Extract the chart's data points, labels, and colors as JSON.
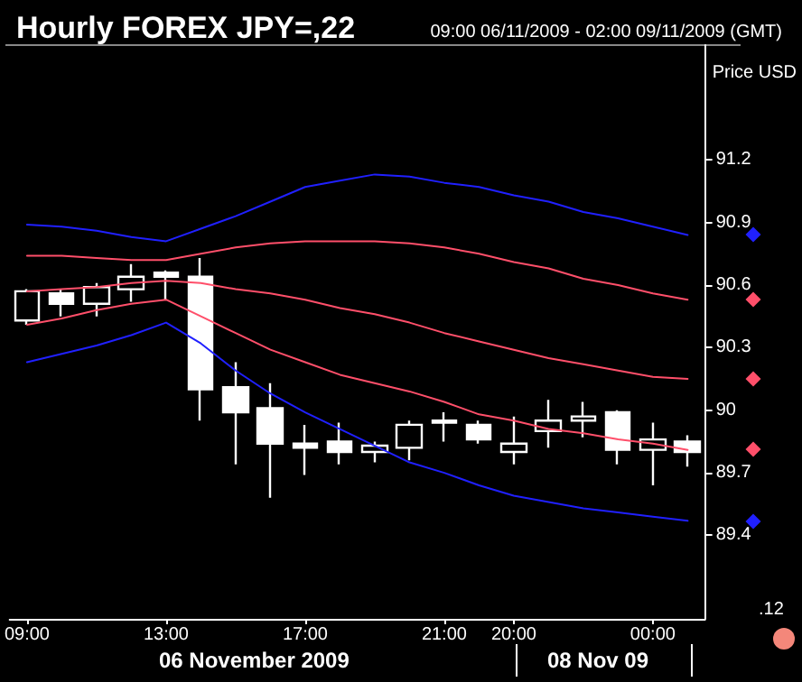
{
  "chart_data": {
    "type": "candlestick",
    "title": "Hourly FOREX JPY=,22",
    "subtitle": "09:00 06/11/2009 - 02:00 09/11/2009 (GMT)",
    "ylabel": "Price USD",
    "categories": [
      "09:00",
      null,
      null,
      null,
      "13:00",
      null,
      null,
      null,
      "17:00",
      null,
      null,
      null,
      "21:00",
      null,
      "20:00",
      null,
      null,
      null,
      "00:00",
      null
    ],
    "ohlc": [
      [
        90.43,
        90.58,
        90.41,
        90.57
      ],
      [
        90.56,
        90.58,
        90.45,
        90.51
      ],
      [
        90.51,
        90.61,
        90.45,
        90.59
      ],
      [
        90.58,
        90.7,
        90.52,
        90.64
      ],
      [
        90.66,
        90.67,
        90.53,
        90.64
      ],
      [
        90.64,
        90.73,
        89.95,
        90.1
      ],
      [
        90.11,
        90.23,
        89.74,
        89.99
      ],
      [
        90.01,
        90.13,
        89.58,
        89.84
      ],
      [
        89.84,
        89.93,
        89.69,
        89.82
      ],
      [
        89.85,
        89.94,
        89.74,
        89.8
      ],
      [
        89.8,
        89.85,
        89.75,
        89.83
      ],
      [
        89.82,
        89.95,
        89.76,
        89.93
      ],
      [
        89.95,
        89.99,
        89.85,
        89.94
      ],
      [
        89.93,
        89.95,
        89.84,
        89.86
      ],
      [
        89.8,
        89.97,
        89.74,
        89.84
      ],
      [
        89.9,
        90.05,
        89.82,
        89.95
      ],
      [
        89.95,
        90.04,
        89.87,
        89.97
      ],
      [
        89.99,
        90.0,
        89.74,
        89.81
      ],
      [
        89.81,
        89.94,
        89.64,
        89.86
      ],
      [
        89.85,
        89.88,
        89.73,
        89.8
      ]
    ],
    "series": [
      {
        "type": "line",
        "color": "#2020ff",
        "values": [
          90.89,
          90.88,
          90.86,
          90.83,
          90.81,
          90.87,
          90.93,
          91.0,
          91.07,
          91.1,
          91.13,
          91.12,
          91.09,
          91.07,
          91.03,
          91.0,
          90.95,
          90.92,
          90.88,
          90.84
        ]
      },
      {
        "type": "line",
        "color": "#ff4f6a",
        "values": [
          90.74,
          90.74,
          90.73,
          90.72,
          90.72,
          90.75,
          90.78,
          90.8,
          90.81,
          90.81,
          90.81,
          90.8,
          90.78,
          90.75,
          90.71,
          90.68,
          90.63,
          90.6,
          90.56,
          90.53
        ]
      },
      {
        "type": "line",
        "color": "#ff4f6a",
        "values": [
          90.57,
          90.58,
          90.59,
          90.61,
          90.62,
          90.61,
          90.58,
          90.56,
          90.53,
          90.49,
          90.46,
          90.42,
          90.37,
          90.33,
          90.29,
          90.25,
          90.22,
          90.19,
          90.16,
          90.15
        ]
      },
      {
        "type": "line",
        "color": "#ff4f6a",
        "values": [
          90.41,
          90.44,
          90.48,
          90.51,
          90.53,
          90.45,
          90.37,
          90.29,
          90.23,
          90.17,
          90.13,
          90.09,
          90.04,
          89.98,
          89.95,
          89.91,
          89.89,
          89.86,
          89.84,
          89.81
        ]
      },
      {
        "type": "line",
        "color": "#2020ff",
        "values": [
          90.23,
          90.27,
          90.31,
          90.36,
          90.42,
          90.32,
          90.19,
          90.08,
          89.99,
          89.91,
          89.83,
          89.75,
          89.7,
          89.64,
          89.59,
          89.56,
          89.53,
          89.51,
          89.49,
          89.47
        ]
      }
    ],
    "ylim": [
      89.0,
      91.75
    ],
    "yticks": [
      89.4,
      89.7,
      90,
      90.3,
      90.6,
      90.9,
      91.2
    ],
    "grid": false,
    "marker": "none",
    "line_style": "solid",
    "annotations": [
      "06 November 2009",
      "08 Nov 09",
      ".12"
    ]
  }
}
